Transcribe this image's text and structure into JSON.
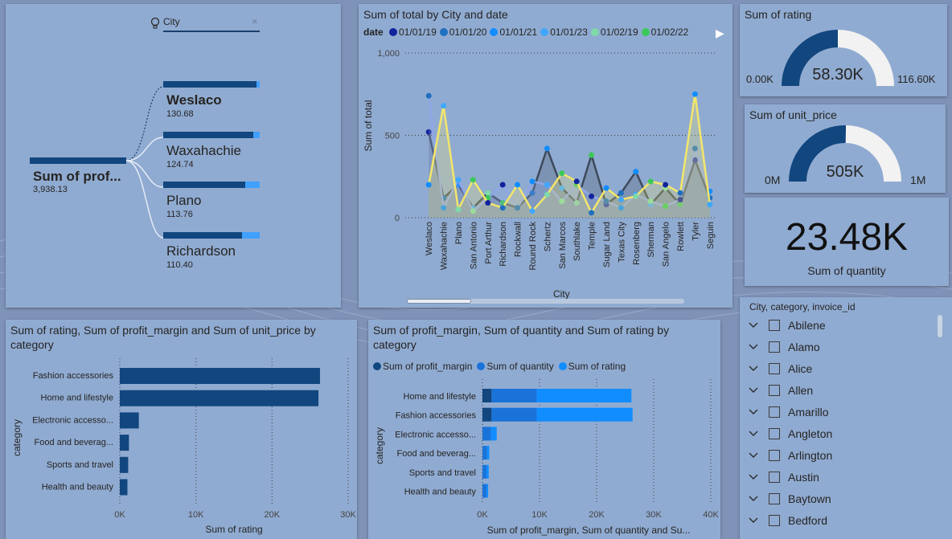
{
  "decomp": {
    "field_label": "City",
    "root": {
      "label": "Sum of prof...",
      "value": "3,938.13"
    },
    "children": [
      {
        "label": "Weslaco",
        "value": "130.68",
        "fill": 0.97,
        "bold": true
      },
      {
        "label": "Waxahachie",
        "value": "124.74",
        "fill": 0.93
      },
      {
        "label": "Plano",
        "value": "113.76",
        "fill": 0.85
      },
      {
        "label": "Richardson",
        "value": "110.40",
        "fill": 0.82
      }
    ]
  },
  "line_card": {
    "title": "Sum of total by City and date",
    "legend_title": "date",
    "legend": [
      {
        "label": "01/01/19",
        "color": "#12239e"
      },
      {
        "label": "01/01/20",
        "color": "#1f6fbf"
      },
      {
        "label": "01/01/21",
        "color": "#118dff"
      },
      {
        "label": "01/01/23",
        "color": "#3fa7ff"
      },
      {
        "label": "01/02/19",
        "color": "#7fd9a8"
      },
      {
        "label": "01/02/22",
        "color": "#3cc85a"
      }
    ],
    "yticks": [
      "1,000",
      "500",
      "0"
    ],
    "ylabel": "Sum of total",
    "xlabel": "City",
    "cities": [
      "Weslaco",
      "Waxahachie",
      "Plano",
      "San Antonio",
      "Port Arthur",
      "Richardson",
      "Rockwall",
      "Round Rock",
      "Schertz",
      "San Marcos",
      "Southlake",
      "Temple",
      "Sugar Land",
      "Texas City",
      "Rosenberg",
      "Sherman",
      "San Angelo",
      "Rowlett",
      "Tyler",
      "Seguin"
    ]
  },
  "gauge_rating": {
    "title": "Sum of rating",
    "value": "58.30K",
    "min": "0.00K",
    "max": "116.60K",
    "fraction": 0.5
  },
  "gauge_price": {
    "title": "Sum of unit_price",
    "value": "505K",
    "min": "0M",
    "max": "1M",
    "fraction": 0.505
  },
  "kpi": {
    "value": "23.48K",
    "label": "Sum of quantity"
  },
  "slicer": {
    "title": "City, category, invoice_id",
    "items": [
      "Abilene",
      "Alamo",
      "Alice",
      "Allen",
      "Amarillo",
      "Angleton",
      "Arlington",
      "Austin",
      "Baytown",
      "Bedford"
    ]
  },
  "bar1": {
    "title": "Sum of rating, Sum of profit_margin and Sum of unit_price by category",
    "ylabel": "category",
    "xlabel": "Sum of rating",
    "xticks": [
      "0K",
      "10K",
      "20K",
      "30K"
    ],
    "categories": [
      "Fashion accessories",
      "Home and lifestyle",
      "Electronic accesso...",
      "Food and beverag...",
      "Sports and travel",
      "Health and beauty"
    ]
  },
  "bar2": {
    "title": "Sum of profit_margin, Sum of quantity and Sum of rating by category",
    "legend": [
      {
        "label": "Sum of profit_margin",
        "color": "#12467e"
      },
      {
        "label": "Sum of quantity",
        "color": "#1a73d9"
      },
      {
        "label": "Sum of rating",
        "color": "#118dff"
      }
    ],
    "ylabel": "category",
    "xlabel": "Sum of profit_margin, Sum of quantity and Su...",
    "xticks": [
      "0K",
      "10K",
      "20K",
      "30K",
      "40K"
    ],
    "categories": [
      "Home and lifestyle",
      "Fashion accessories",
      "Electronic accesso...",
      "Food and beverag...",
      "Sports and travel",
      "Health and beauty"
    ]
  },
  "chart_data": [
    {
      "type": "bar",
      "title": "Sum of rating, Sum of profit_margin and Sum of unit_price by category",
      "categories": [
        "Fashion accessories",
        "Home and lifestyle",
        "Electronic accesso...",
        "Food and beverag...",
        "Sports and travel",
        "Health and beauty"
      ],
      "series": [
        {
          "name": "Sum of rating",
          "values": [
            26300,
            26100,
            2500,
            1200,
            1100,
            1000
          ]
        }
      ],
      "xlabel": "Sum of rating",
      "ylabel": "category",
      "xlim": [
        0,
        30000
      ]
    },
    {
      "type": "bar",
      "title": "Sum of profit_margin, Sum of quantity and Sum of rating by category",
      "categories": [
        "Home and lifestyle",
        "Fashion accessories",
        "Electronic accesso...",
        "Food and beverag...",
        "Sports and travel",
        "Health and beauty"
      ],
      "series": [
        {
          "name": "Sum of profit_margin",
          "values": [
            1600,
            1600,
            0,
            0,
            0,
            0
          ]
        },
        {
          "name": "Sum of quantity",
          "values": [
            9500,
            9500,
            1500,
            800,
            700,
            700
          ]
        },
        {
          "name": "Sum of rating",
          "values": [
            26100,
            26300,
            2500,
            1200,
            1100,
            1000
          ]
        }
      ],
      "xlabel": "Sum of profit_margin, Sum of quantity and Su...",
      "ylabel": "category",
      "xlim": [
        0,
        40000
      ]
    },
    {
      "type": "line",
      "title": "Sum of total by City and date",
      "categories": [
        "Weslaco",
        "Waxahachie",
        "Plano",
        "San Antonio",
        "Port Arthur",
        "Richardson",
        "Rockwall",
        "Round Rock",
        "Schertz",
        "San Marcos",
        "Southlake",
        "Temple",
        "Sugar Land",
        "Texas City",
        "Rosenberg",
        "Sherman",
        "San Angelo",
        "Rowlett",
        "Tyler",
        "Seguin"
      ],
      "series": [
        {
          "name": "01/01/19",
          "values": [
            520,
            120,
            200,
            60,
            150,
            90,
            60,
            150,
            420,
            180,
            90,
            380,
            80,
            150,
            280,
            80,
            180,
            80,
            350,
            120
          ]
        },
        {
          "name": "01/01/20",
          "values": [
            740,
            60,
            230,
            40,
            120,
            200,
            60,
            220,
            200,
            100,
            200,
            130,
            100,
            60,
            140,
            100,
            70,
            110,
            420,
            160
          ]
        },
        {
          "name": "01/02/22",
          "values": [
            200,
            680,
            50,
            230,
            90,
            60,
            200,
            40,
            140,
            270,
            220,
            30,
            180,
            110,
            130,
            220,
            200,
            150,
            750,
            80
          ]
        }
      ],
      "xlabel": "City",
      "ylabel": "Sum of total",
      "ylim": [
        0,
        1000
      ]
    }
  ]
}
